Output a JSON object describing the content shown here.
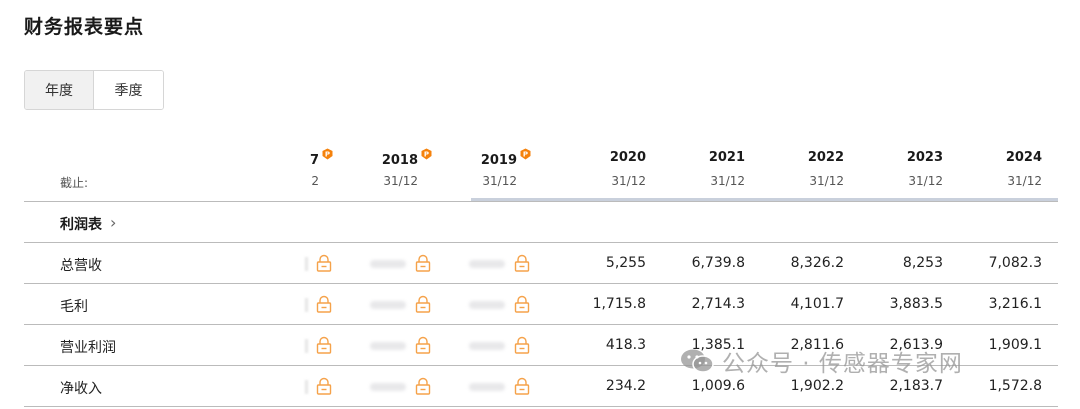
{
  "title": "财务报表要点",
  "toggle": {
    "annual": "年度",
    "quarterly": "季度",
    "selected": "annual"
  },
  "header": {
    "label": "截止:",
    "columns": [
      {
        "year": "7",
        "date": "2",
        "premium": true
      },
      {
        "year": "2018",
        "date": "31/12",
        "premium": true
      },
      {
        "year": "2019",
        "date": "31/12",
        "premium": true
      },
      {
        "year": "2020",
        "date": "31/12",
        "premium": false
      },
      {
        "year": "2021",
        "date": "31/12",
        "premium": false
      },
      {
        "year": "2022",
        "date": "31/12",
        "premium": false
      },
      {
        "year": "2023",
        "date": "31/12",
        "premium": false
      },
      {
        "year": "2024",
        "date": "31/12",
        "premium": false
      }
    ]
  },
  "section": {
    "label": "利润表",
    "chevron": "chevron-right-icon"
  },
  "rows": [
    {
      "label": "总营收",
      "values": [
        "5,255",
        "6,739.8",
        "8,326.2",
        "8,253",
        "7,082.3"
      ]
    },
    {
      "label": "毛利",
      "values": [
        "1,715.8",
        "2,714.3",
        "4,101.7",
        "3,883.5",
        "3,216.1"
      ]
    },
    {
      "label": "营业利润",
      "values": [
        "418.3",
        "1,385.1",
        "2,811.6",
        "2,613.9",
        "1,909.1"
      ]
    },
    {
      "label": "净收入",
      "values": [
        "234.2",
        "1,009.6",
        "1,902.2",
        "2,183.7",
        "1,572.8"
      ]
    }
  ],
  "watermark": {
    "text": "公众号 · 传感器专家网"
  },
  "colors": {
    "accent": "#f5820c",
    "lock": "#f5a24a",
    "rule": "#bbbbbb",
    "rule_strong": "#c9d0dc"
  }
}
